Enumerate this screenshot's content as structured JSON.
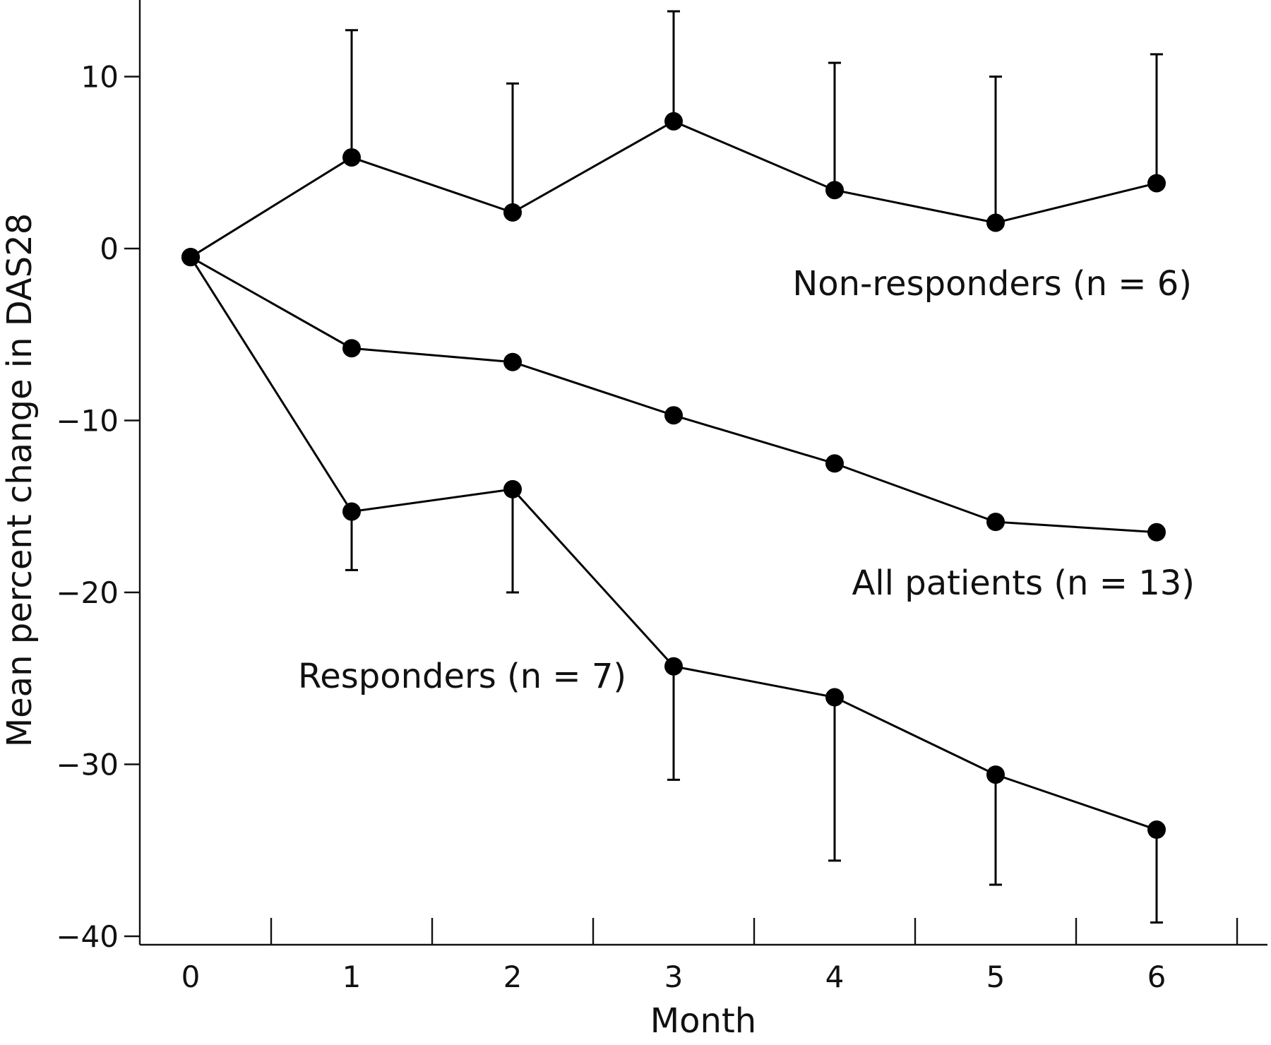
{
  "chart_data": {
    "type": "line",
    "xlabel": "Month",
    "ylabel": "Mean percent change in DAS28",
    "x": [
      0,
      1,
      2,
      3,
      4,
      5,
      6
    ],
    "xlim": [
      -0.5,
      6.5
    ],
    "ylim": [
      -40,
      14
    ],
    "x_ticks": [
      "0",
      "1",
      "2",
      "3",
      "4",
      "5",
      "6"
    ],
    "y_ticks": [
      10,
      0,
      -10,
      -20,
      -30,
      -40
    ],
    "y_tick_labels": [
      "10",
      "0",
      "−10",
      "−20",
      "−30",
      "−40"
    ],
    "grid": false,
    "series": [
      {
        "name": "Non-responders (n = 6)",
        "values": [
          -0.5,
          5.3,
          2.1,
          7.4,
          3.4,
          1.5,
          3.8
        ],
        "error_upper": [
          null,
          12.7,
          9.6,
          13.8,
          10.8,
          10.0,
          11.3
        ],
        "error_lower": [
          null,
          null,
          null,
          null,
          null,
          null,
          null
        ]
      },
      {
        "name": "All patients (n = 13)",
        "values": [
          -0.5,
          -5.8,
          -6.6,
          -9.7,
          -12.5,
          -15.9,
          -16.5
        ],
        "error_upper": [
          null,
          null,
          null,
          null,
          null,
          null,
          null
        ],
        "error_lower": [
          null,
          null,
          null,
          null,
          null,
          null,
          null
        ]
      },
      {
        "name": "Responders (n = 7)",
        "values": [
          -0.5,
          -15.3,
          -14.0,
          -24.3,
          -26.1,
          -30.6,
          -33.8
        ],
        "error_upper": [
          null,
          null,
          null,
          null,
          null,
          null,
          null
        ],
        "error_lower": [
          null,
          -18.7,
          -20.0,
          -30.9,
          -35.6,
          -37.0,
          -39.2
        ]
      }
    ]
  }
}
